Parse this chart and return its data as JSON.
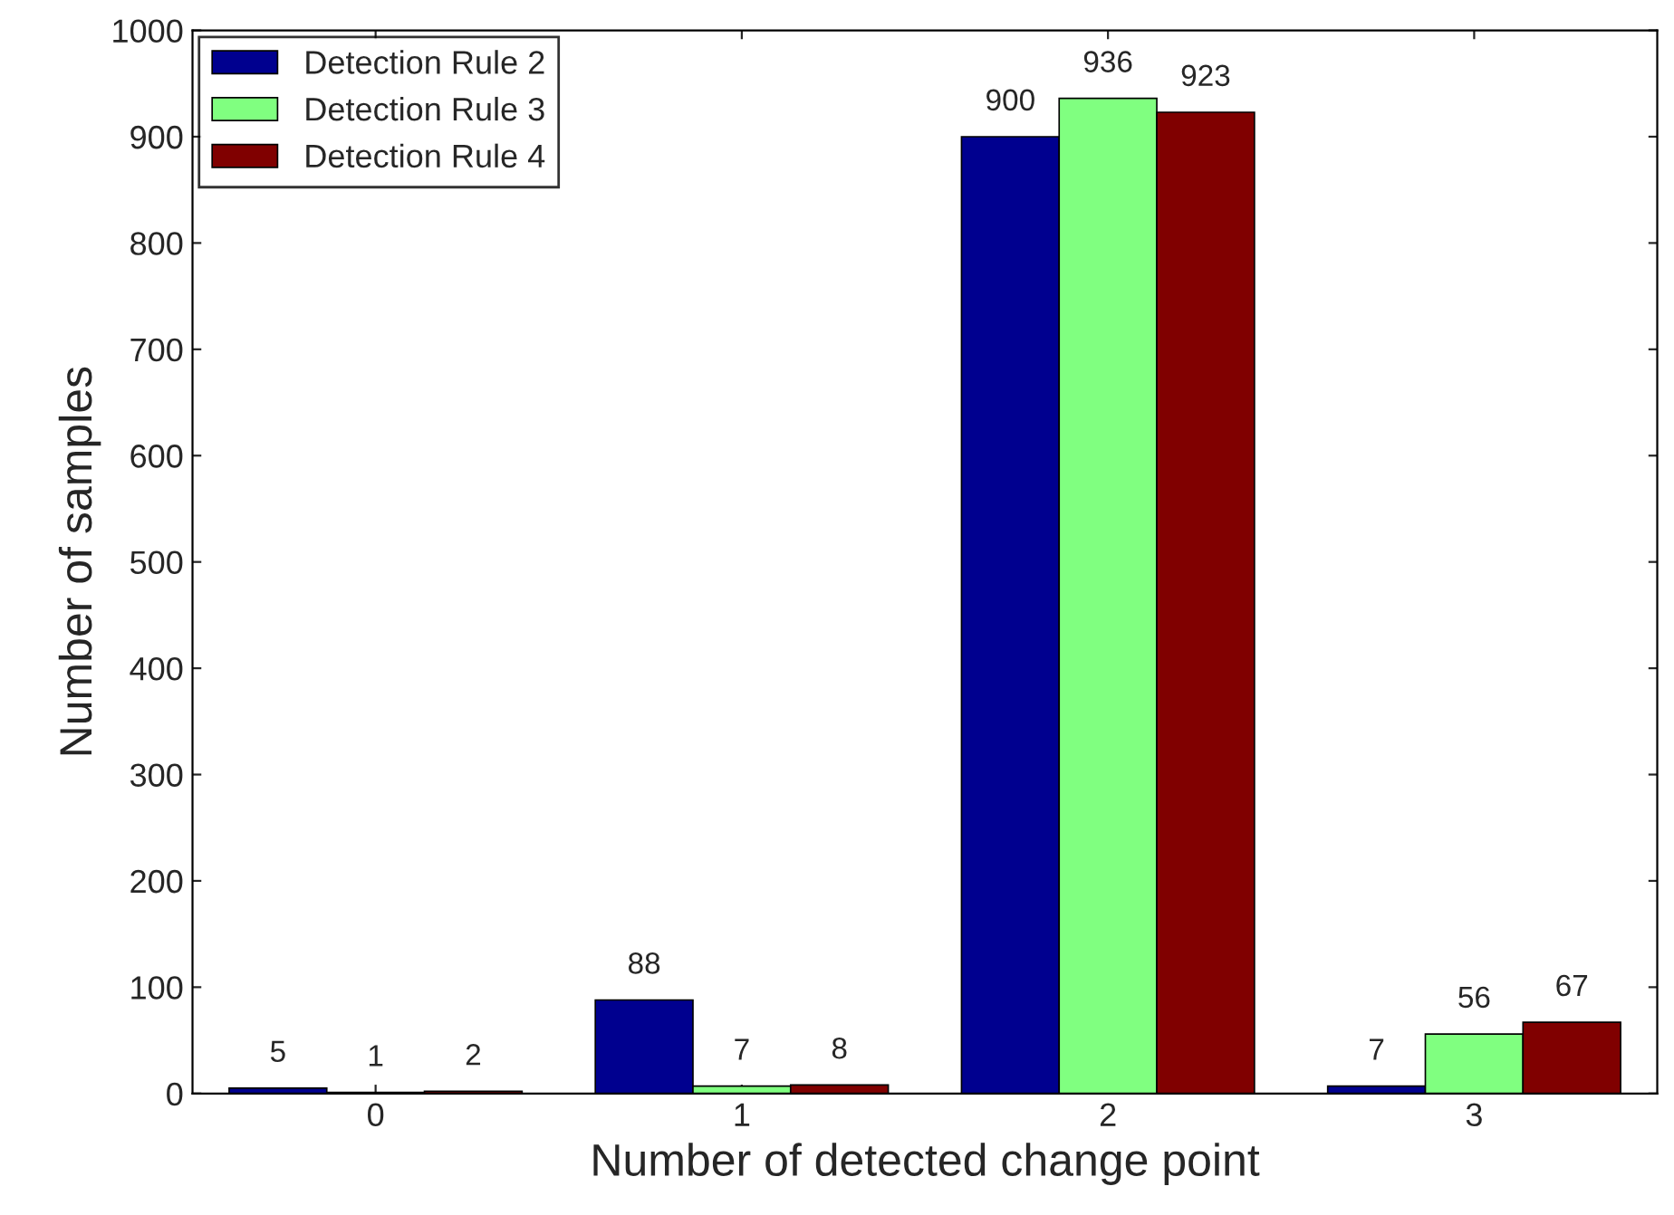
{
  "chart_data": {
    "type": "bar",
    "xlabel": "Number of detected change point",
    "ylabel": "Number of samples",
    "categories": [
      "0",
      "1",
      "2",
      "3"
    ],
    "series": [
      {
        "name": "Detection Rule 2",
        "color": "#00008f",
        "values": [
          5,
          88,
          900,
          7
        ]
      },
      {
        "name": "Detection Rule 3",
        "color": "#80ff80",
        "values": [
          1,
          7,
          936,
          56
        ]
      },
      {
        "name": "Detection Rule 4",
        "color": "#800000",
        "values": [
          2,
          8,
          923,
          67
        ]
      }
    ],
    "ylim": [
      0,
      1000
    ],
    "yticks": [
      0,
      100,
      200,
      300,
      400,
      500,
      600,
      700,
      800,
      900,
      1000
    ],
    "data_labels": true,
    "legend": "top left",
    "grid": false
  }
}
